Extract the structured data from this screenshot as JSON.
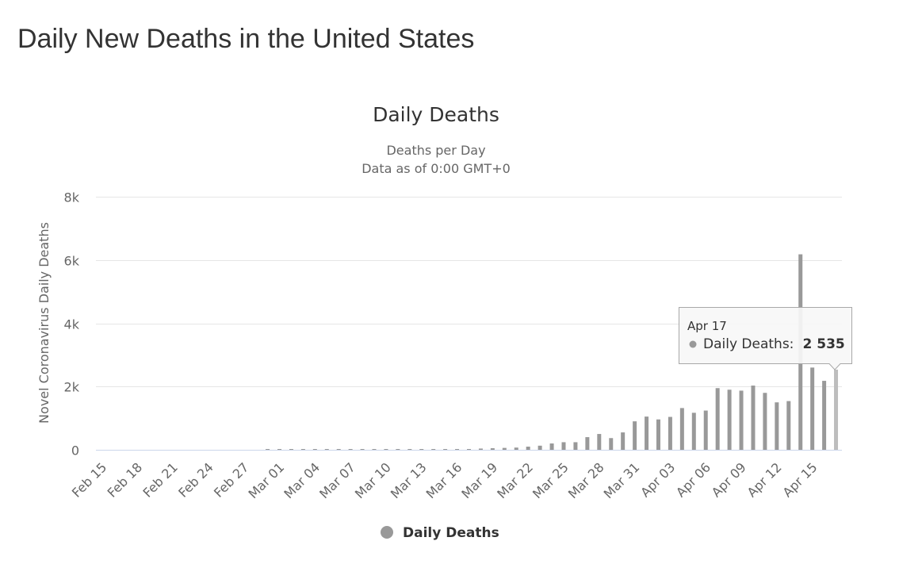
{
  "page": {
    "title": "Daily New Deaths in the United States"
  },
  "chart_data": {
    "type": "bar",
    "title": "Daily Deaths",
    "subtitle_lines": [
      "Deaths per Day",
      "Data as of 0:00 GMT+0"
    ],
    "ylabel": "Novel Coronavirus Daily Deaths",
    "xlabel": "",
    "ylim": [
      0,
      8000
    ],
    "y_ticks": [
      {
        "value": 0,
        "label": "0"
      },
      {
        "value": 2000,
        "label": "2k"
      },
      {
        "value": 4000,
        "label": "4k"
      },
      {
        "value": 6000,
        "label": "6k"
      },
      {
        "value": 8000,
        "label": "8k"
      }
    ],
    "grid": true,
    "color": "#999999",
    "highlight_color": "#bdbdbd",
    "x_tick_labels": [
      "Feb 15",
      "Feb 18",
      "Feb 21",
      "Feb 24",
      "Feb 27",
      "Mar 01",
      "Mar 04",
      "Mar 07",
      "Mar 10",
      "Mar 13",
      "Mar 16",
      "Mar 19",
      "Mar 22",
      "Mar 25",
      "Mar 28",
      "Mar 31",
      "Apr 03",
      "Apr 06",
      "Apr 09",
      "Apr 12",
      "Apr 15"
    ],
    "categories": [
      "Feb 15",
      "Feb 16",
      "Feb 17",
      "Feb 18",
      "Feb 19",
      "Feb 20",
      "Feb 21",
      "Feb 22",
      "Feb 23",
      "Feb 24",
      "Feb 25",
      "Feb 26",
      "Feb 27",
      "Feb 28",
      "Feb 29",
      "Mar 01",
      "Mar 02",
      "Mar 03",
      "Mar 04",
      "Mar 05",
      "Mar 06",
      "Mar 07",
      "Mar 08",
      "Mar 09",
      "Mar 10",
      "Mar 11",
      "Mar 12",
      "Mar 13",
      "Mar 14",
      "Mar 15",
      "Mar 16",
      "Mar 17",
      "Mar 18",
      "Mar 19",
      "Mar 20",
      "Mar 21",
      "Mar 22",
      "Mar 23",
      "Mar 24",
      "Mar 25",
      "Mar 26",
      "Mar 27",
      "Mar 28",
      "Mar 29",
      "Mar 30",
      "Mar 31",
      "Apr 01",
      "Apr 02",
      "Apr 03",
      "Apr 04",
      "Apr 05",
      "Apr 06",
      "Apr 07",
      "Apr 08",
      "Apr 09",
      "Apr 10",
      "Apr 11",
      "Apr 12",
      "Apr 13",
      "Apr 14",
      "Apr 15",
      "Apr 16",
      "Apr 17"
    ],
    "series": [
      {
        "name": "Daily Deaths",
        "values": [
          0,
          0,
          0,
          0,
          0,
          0,
          0,
          0,
          0,
          0,
          0,
          0,
          0,
          0,
          1,
          1,
          4,
          1,
          2,
          3,
          3,
          3,
          4,
          5,
          8,
          7,
          9,
          11,
          9,
          13,
          18,
          23,
          39,
          50,
          60,
          70,
          100,
          130,
          200,
          240,
          240,
          400,
          500,
          370,
          550,
          900,
          1050,
          960,
          1040,
          1320,
          1170,
          1240,
          1950,
          1900,
          1870,
          2030,
          1800,
          1500,
          1540,
          6180,
          2600,
          2180,
          2535
        ]
      }
    ],
    "legend": {
      "label": "Daily Deaths",
      "position": "bottom-center"
    },
    "tooltip": {
      "date": "Apr 17",
      "series_label": "Daily Deaths:",
      "value_text": "2 535"
    }
  }
}
